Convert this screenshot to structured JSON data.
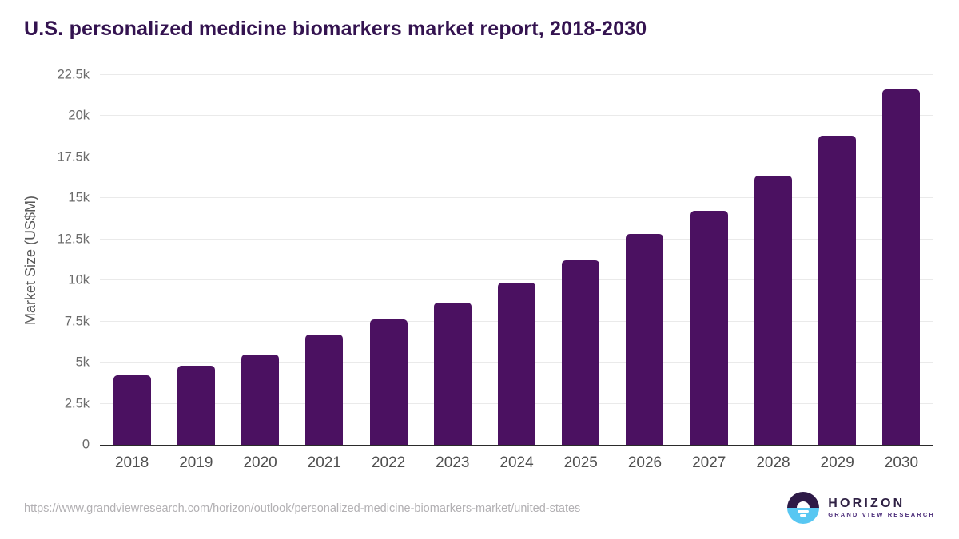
{
  "header": {
    "title": "U.S. personalized medicine biomarkers market report, 2018-2030",
    "title_color": "#341350"
  },
  "chart_data": {
    "type": "bar",
    "title": "U.S. personalized medicine biomarkers market report, 2018-2030",
    "categories": [
      "2018",
      "2019",
      "2020",
      "2021",
      "2022",
      "2023",
      "2024",
      "2025",
      "2026",
      "2027",
      "2028",
      "2029",
      "2030"
    ],
    "values": [
      4220,
      4820,
      5500,
      6710,
      7650,
      8640,
      9860,
      11230,
      12820,
      14220,
      16390,
      18810,
      21630
    ],
    "xlabel": "",
    "ylabel": "Market Size (US$M)",
    "ylim": [
      0,
      22500
    ],
    "yticks": [
      0,
      2500,
      5000,
      7500,
      10000,
      12500,
      15000,
      17500,
      20000,
      22500
    ],
    "ytick_labels": [
      "0",
      "2.5k",
      "5k",
      "7.5k",
      "10k",
      "12.5k",
      "15k",
      "17.5k",
      "20k",
      "22.5k"
    ],
    "bar_color": "#4b1161",
    "grid": "horizontal",
    "legend": "none"
  },
  "footer": {
    "source_url": "https://www.grandviewresearch.com/horizon/outlook/personalized-medicine-biomarkers-market/united-states",
    "logo": {
      "brand": "HORIZON",
      "sub_brand": "GRAND VIEW RESEARCH",
      "mark_top_color": "#2e1a47",
      "mark_bottom_color": "#58c7f2"
    }
  }
}
